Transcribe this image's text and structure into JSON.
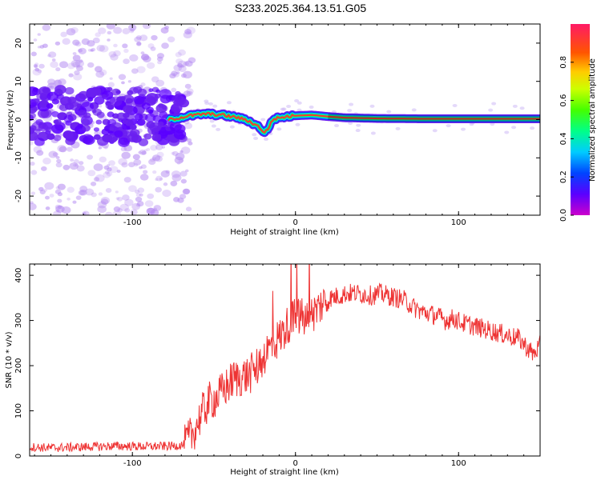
{
  "title": "S233.2025.364.13.51.G05",
  "colors": {
    "line": "#ee3333",
    "scatter": "#6a1ff0",
    "colorbar": [
      "#cc00cc",
      "#5a00ff",
      "#0044ff",
      "#00ccff",
      "#00ff44",
      "#aaff00",
      "#ffee00",
      "#ff8800",
      "#ff2222",
      "#ff1a66"
    ]
  },
  "chart_data": [
    {
      "type": "heatmap",
      "name": "spectrogram",
      "xlabel": "Height of straight line (km)",
      "ylabel": "Frequency (Hz)",
      "xlim": [
        -163,
        150
      ],
      "ylim": [
        -25,
        25
      ],
      "xticks": [
        -100,
        0,
        100
      ],
      "xtick_labels": [
        "-100",
        "0",
        "100"
      ],
      "yticks": [
        -20,
        -10,
        0,
        10,
        20
      ],
      "ytick_labels": [
        "-20",
        "-10",
        "0",
        "10",
        "20"
      ],
      "ridge": {
        "x": [
          -77,
          -65,
          -55,
          -45,
          -35,
          -28,
          -22,
          -19,
          -17,
          -14,
          -10,
          -5,
          0,
          10,
          20,
          30,
          50,
          80,
          110,
          150
        ],
        "y": [
          0,
          1,
          1.5,
          1.2,
          0.5,
          -0.5,
          -2,
          -3.5,
          -2.5,
          0,
          0.5,
          0.8,
          1,
          1.2,
          0.8,
          0.5,
          0.3,
          0.2,
          0.2,
          0.2
        ]
      },
      "colorbar": {
        "label": "Normalized spectral amplitude",
        "range": [
          0,
          1
        ],
        "ticks": [
          0.0,
          0.2,
          0.4,
          0.6,
          0.8
        ],
        "tick_labels": [
          "0.0",
          "0.2",
          "0.4",
          "0.6",
          "0.8"
        ]
      }
    },
    {
      "type": "line",
      "name": "snr",
      "xlabel": "Height of straight line (km)",
      "ylabel": "SNR (10 * v/v)",
      "xlim": [
        -163,
        150
      ],
      "ylim": [
        0,
        425
      ],
      "xticks": [
        -100,
        0,
        100
      ],
      "xtick_labels": [
        "-100",
        "0",
        "100"
      ],
      "yticks": [
        0,
        100,
        200,
        300,
        400
      ],
      "ytick_labels": [
        "0",
        "100",
        "200",
        "300",
        "400"
      ],
      "series": [
        {
          "name": "SNR",
          "x": [
            -163,
            -150,
            -130,
            -110,
            -90,
            -75,
            -68,
            -63,
            -58,
            -53,
            -48,
            -43,
            -38,
            -33,
            -28,
            -23,
            -18,
            -13,
            -8,
            -3,
            2,
            7,
            12,
            17,
            22,
            27,
            32,
            37,
            42,
            47,
            52,
            57,
            62,
            67,
            72,
            77,
            82,
            87,
            92,
            97,
            102,
            107,
            112,
            117,
            122,
            127,
            132,
            137,
            142,
            146,
            150
          ],
          "y": [
            20,
            18,
            20,
            22,
            21,
            22,
            25,
            50,
            90,
            120,
            130,
            150,
            170,
            175,
            180,
            200,
            230,
            250,
            270,
            300,
            310,
            300,
            320,
            340,
            350,
            355,
            360,
            360,
            358,
            355,
            360,
            355,
            350,
            345,
            330,
            320,
            315,
            310,
            300,
            305,
            295,
            290,
            285,
            280,
            275,
            270,
            265,
            260,
            240,
            225,
            245
          ]
        }
      ]
    }
  ]
}
